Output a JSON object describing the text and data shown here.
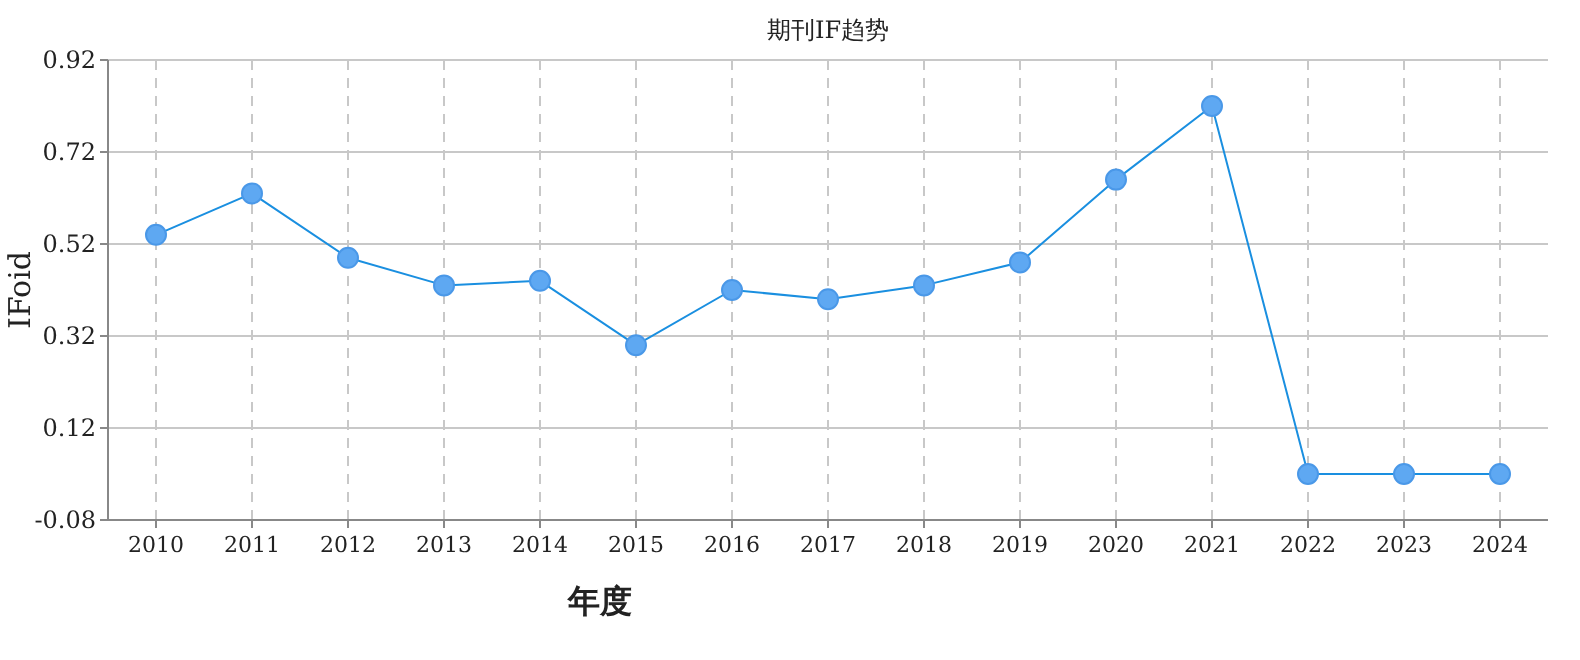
{
  "chart_data": {
    "type": "line",
    "title": "期刊IF趋势",
    "xlabel": "年度",
    "ylabel": "IFoid",
    "categories": [
      "2010",
      "2011",
      "2012",
      "2013",
      "2014",
      "2015",
      "2016",
      "2017",
      "2018",
      "2019",
      "2020",
      "2021",
      "2022",
      "2023",
      "2024"
    ],
    "series": [
      {
        "color": "#1a8fe0",
        "values": [
          0.54,
          0.63,
          0.49,
          0.43,
          0.44,
          0.3,
          0.42,
          0.4,
          0.43,
          0.48,
          0.66,
          0.82,
          0.02,
          0.02,
          0.02
        ]
      }
    ],
    "ylim": [
      -0.08,
      0.92
    ],
    "yticks": [
      -0.08,
      0.12,
      0.32,
      0.52,
      0.72,
      0.92
    ],
    "grid": true,
    "marker": "circle",
    "line_style": "solid"
  }
}
